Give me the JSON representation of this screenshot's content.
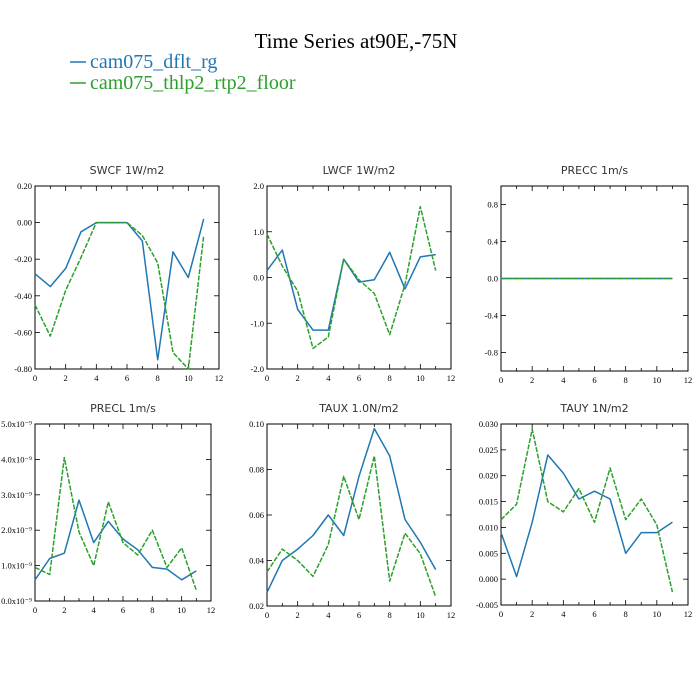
{
  "figure": {
    "title": "Time Series at90E,-75N",
    "legend": [
      {
        "label": "cam075_dflt_rg",
        "color": "#1f77b4"
      },
      {
        "label": "cam075_thlp2_rtp2_floor",
        "color": "#2ca02c"
      }
    ]
  },
  "chart_data": [
    {
      "type": "line",
      "title": "SWCF   1W/m2",
      "x": [
        0,
        1,
        2,
        3,
        4,
        5,
        6,
        7,
        8,
        9,
        10,
        11
      ],
      "xlim": [
        0,
        12
      ],
      "xticks": [
        "0",
        "2",
        "4",
        "6",
        "8",
        "10",
        "12"
      ],
      "ylim": [
        -0.8,
        0.2
      ],
      "yticks": [
        "-0.80",
        "-0.60",
        "-0.40",
        "-0.20",
        "0.00",
        "0.20"
      ],
      "series": [
        {
          "name": "cam075_dflt_rg",
          "values": [
            -0.28,
            -0.35,
            -0.25,
            -0.05,
            0.0,
            0.0,
            0.0,
            -0.1,
            -0.75,
            -0.16,
            -0.3,
            0.02
          ]
        },
        {
          "name": "cam075_thlp2_rtp2_floor",
          "values": [
            -0.45,
            -0.62,
            -0.37,
            -0.19,
            0.0,
            0.0,
            0.0,
            -0.07,
            -0.22,
            -0.71,
            -0.8,
            -0.07
          ]
        }
      ]
    },
    {
      "type": "line",
      "title": "LWCF   1W/m2",
      "x": [
        0,
        1,
        2,
        3,
        4,
        5,
        6,
        7,
        8,
        9,
        10,
        11
      ],
      "xlim": [
        0,
        12
      ],
      "xticks": [
        "0",
        "2",
        "4",
        "6",
        "8",
        "10",
        "12"
      ],
      "ylim": [
        -2.0,
        2.0
      ],
      "yticks": [
        "-2.0",
        "-1.0",
        "0.0",
        "1.0",
        "2.0"
      ],
      "series": [
        {
          "name": "cam075_dflt_rg",
          "values": [
            0.15,
            0.6,
            -0.7,
            -1.15,
            -1.15,
            0.4,
            -0.1,
            -0.05,
            0.55,
            -0.25,
            0.45,
            0.5
          ]
        },
        {
          "name": "cam075_thlp2_rtp2_floor",
          "values": [
            0.95,
            0.25,
            -0.3,
            -1.55,
            -1.3,
            0.4,
            -0.05,
            -0.35,
            -1.25,
            -0.15,
            1.55,
            0.15
          ]
        }
      ]
    },
    {
      "type": "line",
      "title": "PRECC   1m/s",
      "x": [
        0,
        1,
        2,
        3,
        4,
        5,
        6,
        7,
        8,
        9,
        10,
        11
      ],
      "xlim": [
        0,
        12
      ],
      "xticks": [
        "0",
        "2",
        "4",
        "6",
        "8",
        "10",
        "12"
      ],
      "ylim": [
        -1.0,
        1.0
      ],
      "yticks": [
        "-0.8",
        "-0.4",
        "0.0",
        "0.4",
        "0.8"
      ],
      "ytick_values": [
        -0.8,
        -0.4,
        0.0,
        0.4,
        0.8
      ],
      "series": [
        {
          "name": "cam075_dflt_rg",
          "values": [
            0,
            0,
            0,
            0,
            0,
            0,
            0,
            0,
            0,
            0,
            0,
            0
          ]
        },
        {
          "name": "cam075_thlp2_rtp2_floor",
          "values": [
            0,
            0,
            0,
            0,
            0,
            0,
            0,
            0,
            0,
            0,
            0,
            0
          ]
        }
      ]
    },
    {
      "type": "line",
      "title": "PRECL   1m/s",
      "x": [
        0,
        1,
        2,
        3,
        4,
        5,
        6,
        7,
        8,
        9,
        10,
        11
      ],
      "xlim": [
        0,
        12
      ],
      "xticks": [
        "0",
        "2",
        "4",
        "6",
        "8",
        "10",
        "12"
      ],
      "ylim": [
        0.0,
        5.0
      ],
      "y_multiplier": "x10⁻⁹",
      "yticks": [
        "0.0x10⁻⁹",
        "1.0x10⁻⁹",
        "2.0x10⁻⁹",
        "3.0x10⁻⁹",
        "4.0x10⁻⁹",
        "5.0x10⁻⁹"
      ],
      "series": [
        {
          "name": "cam075_dflt_rg",
          "values": [
            0.6,
            1.2,
            1.35,
            2.85,
            1.65,
            2.25,
            1.75,
            1.45,
            0.95,
            0.9,
            0.6,
            0.85
          ]
        },
        {
          "name": "cam075_thlp2_rtp2_floor",
          "values": [
            0.95,
            0.75,
            4.05,
            1.95,
            1.0,
            2.8,
            1.65,
            1.3,
            2.0,
            0.95,
            1.5,
            0.3
          ]
        }
      ]
    },
    {
      "type": "line",
      "title": "TAUX   1.0N/m2",
      "x": [
        0,
        1,
        2,
        3,
        4,
        5,
        6,
        7,
        8,
        9,
        10,
        11
      ],
      "xlim": [
        0,
        12
      ],
      "xticks": [
        "0",
        "2",
        "4",
        "6",
        "8",
        "10",
        "12"
      ],
      "ylim": [
        0.02,
        0.1
      ],
      "yticks": [
        "0.02",
        "0.04",
        "0.06",
        "0.08",
        "0.10"
      ],
      "series": [
        {
          "name": "cam075_dflt_rg",
          "values": [
            0.026,
            0.04,
            0.045,
            0.051,
            0.06,
            0.051,
            0.077,
            0.098,
            0.086,
            0.058,
            0.048,
            0.036
          ]
        },
        {
          "name": "cam075_thlp2_rtp2_floor",
          "values": [
            0.035,
            0.045,
            0.04,
            0.033,
            0.047,
            0.077,
            0.058,
            0.086,
            0.031,
            0.052,
            0.043,
            0.024
          ]
        }
      ]
    },
    {
      "type": "line",
      "title": "TAUY   1N/m2",
      "x": [
        0,
        1,
        2,
        3,
        4,
        5,
        6,
        7,
        8,
        9,
        10,
        11
      ],
      "xlim": [
        0,
        12
      ],
      "xticks": [
        "0",
        "2",
        "4",
        "6",
        "8",
        "10",
        "12"
      ],
      "ylim": [
        -0.005,
        0.03
      ],
      "yticks": [
        "-0.005",
        "0.000",
        "0.005",
        "0.010",
        "0.015",
        "0.020",
        "0.025",
        "0.030"
      ],
      "series": [
        {
          "name": "cam075_dflt_rg",
          "values": [
            0.009,
            0.0005,
            0.011,
            0.024,
            0.0205,
            0.0155,
            0.017,
            0.0155,
            0.005,
            0.009,
            0.009,
            0.011
          ]
        },
        {
          "name": "cam075_thlp2_rtp2_floor",
          "values": [
            0.0115,
            0.0145,
            0.029,
            0.015,
            0.013,
            0.0175,
            0.011,
            0.0215,
            0.0115,
            0.0155,
            0.0105,
            -0.0025
          ]
        }
      ]
    }
  ]
}
